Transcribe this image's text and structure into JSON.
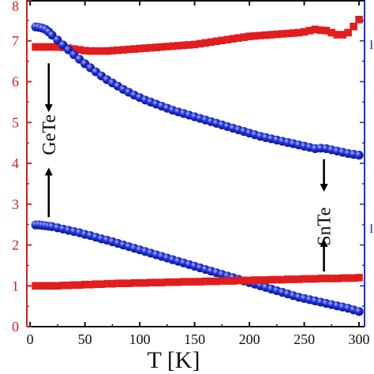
{
  "chart_data": {
    "type": "scatter",
    "xlabel": "T [K]",
    "xlim": [
      -3,
      305
    ],
    "ylim": [
      0,
      8
    ],
    "x_ticks": [
      "0",
      "50",
      "100",
      "150",
      "200",
      "250",
      "300"
    ],
    "left_ticks": [
      "0",
      "1",
      "2",
      "3",
      "4",
      "5",
      "6",
      "7",
      "8"
    ],
    "right_axis_tick_fragments": [
      "I",
      "I"
    ],
    "grid": false,
    "legend": "none",
    "colors": {
      "red_series": "#e11d1d",
      "blue_series": "#1f2fd6",
      "left_axis": "#d11f1f",
      "right_axis": "#1f2fd6",
      "arrows": "#000000"
    },
    "series": [
      {
        "marker": "square",
        "color": "red",
        "x": [
          5,
          9,
          13,
          17,
          21,
          25,
          30,
          35,
          40,
          45,
          50,
          55,
          60,
          65,
          70,
          75,
          80,
          85,
          90,
          95,
          100,
          105,
          110,
          115,
          120,
          125,
          130,
          135,
          140,
          145,
          150,
          155,
          160,
          165,
          170,
          175,
          180,
          185,
          190,
          195,
          200,
          205,
          210,
          215,
          220,
          225,
          230,
          235,
          240,
          245,
          250,
          255,
          260,
          265,
          270,
          275,
          280,
          285,
          290,
          295,
          300
        ],
        "y": [
          6.85,
          6.85,
          6.85,
          6.85,
          6.85,
          6.85,
          6.84,
          6.82,
          6.8,
          6.78,
          6.76,
          6.75,
          6.75,
          6.75,
          6.75,
          6.76,
          6.77,
          6.78,
          6.79,
          6.8,
          6.81,
          6.82,
          6.83,
          6.84,
          6.85,
          6.86,
          6.87,
          6.88,
          6.89,
          6.9,
          6.91,
          6.93,
          6.95,
          6.97,
          6.99,
          7.01,
          7.03,
          7.05,
          7.07,
          7.09,
          7.11,
          7.12,
          7.13,
          7.14,
          7.15,
          7.16,
          7.17,
          7.18,
          7.19,
          7.2,
          7.22,
          7.25,
          7.28,
          7.26,
          7.25,
          7.2,
          7.15,
          7.15,
          7.2,
          7.35,
          7.52
        ]
      },
      {
        "marker": "circle",
        "color": "blue",
        "x": [
          5,
          8,
          11,
          14,
          17,
          20,
          25,
          30,
          35,
          40,
          45,
          50,
          55,
          60,
          65,
          70,
          75,
          80,
          85,
          90,
          95,
          100,
          105,
          110,
          115,
          120,
          125,
          130,
          135,
          140,
          145,
          150,
          155,
          160,
          165,
          170,
          175,
          180,
          185,
          190,
          195,
          200,
          205,
          210,
          215,
          220,
          225,
          230,
          235,
          240,
          245,
          250,
          255,
          260,
          265,
          270,
          275,
          280,
          285,
          290,
          295,
          300
        ],
        "y": [
          7.34,
          7.33,
          7.31,
          7.28,
          7.22,
          7.14,
          7.02,
          6.9,
          6.78,
          6.66,
          6.55,
          6.44,
          6.34,
          6.24,
          6.14,
          6.05,
          5.97,
          5.89,
          5.81,
          5.74,
          5.67,
          5.61,
          5.55,
          5.5,
          5.45,
          5.4,
          5.35,
          5.3,
          5.26,
          5.22,
          5.18,
          5.14,
          5.1,
          5.06,
          5.02,
          4.98,
          4.94,
          4.9,
          4.86,
          4.82,
          4.78,
          4.74,
          4.7,
          4.66,
          4.63,
          4.6,
          4.57,
          4.54,
          4.51,
          4.48,
          4.45,
          4.42,
          4.39,
          4.36,
          4.37,
          4.36,
          4.33,
          4.3,
          4.27,
          4.24,
          4.22,
          4.2
        ]
      },
      {
        "marker": "circle",
        "color": "blue",
        "x": [
          5,
          8,
          11,
          14,
          17,
          20,
          25,
          30,
          35,
          40,
          45,
          50,
          55,
          60,
          65,
          70,
          75,
          80,
          85,
          90,
          95,
          100,
          105,
          110,
          115,
          120,
          125,
          130,
          135,
          140,
          145,
          150,
          155,
          160,
          165,
          170,
          175,
          180,
          185,
          190,
          195,
          200,
          205,
          210,
          215,
          220,
          225,
          230,
          235,
          240,
          245,
          250,
          255,
          260,
          265,
          270,
          275,
          280,
          285,
          290,
          295,
          300
        ],
        "y": [
          2.49,
          2.49,
          2.48,
          2.47,
          2.46,
          2.45,
          2.42,
          2.39,
          2.36,
          2.33,
          2.3,
          2.26,
          2.23,
          2.19,
          2.15,
          2.12,
          2.08,
          2.04,
          2.0,
          1.96,
          1.92,
          1.88,
          1.84,
          1.8,
          1.76,
          1.72,
          1.68,
          1.64,
          1.6,
          1.56,
          1.52,
          1.48,
          1.44,
          1.4,
          1.36,
          1.32,
          1.28,
          1.24,
          1.2,
          1.16,
          1.12,
          1.08,
          1.04,
          1.0,
          0.96,
          0.92,
          0.88,
          0.84,
          0.8,
          0.76,
          0.72,
          0.69,
          0.66,
          0.63,
          0.6,
          0.57,
          0.54,
          0.51,
          0.48,
          0.45,
          0.41,
          0.37
        ]
      },
      {
        "marker": "square",
        "color": "red",
        "x": [
          5,
          9,
          13,
          17,
          21,
          25,
          30,
          35,
          40,
          45,
          50,
          55,
          60,
          65,
          70,
          75,
          80,
          85,
          90,
          95,
          100,
          105,
          110,
          115,
          120,
          125,
          130,
          135,
          140,
          145,
          150,
          155,
          160,
          165,
          170,
          175,
          180,
          185,
          190,
          195,
          200,
          205,
          210,
          215,
          220,
          225,
          230,
          235,
          240,
          245,
          250,
          255,
          260,
          265,
          270,
          275,
          280,
          285,
          290,
          295,
          300
        ],
        "y": [
          1.0,
          1.0,
          1.0,
          1.0,
          1.0,
          1.0,
          1.01,
          1.01,
          1.02,
          1.02,
          1.03,
          1.03,
          1.04,
          1.04,
          1.05,
          1.05,
          1.06,
          1.06,
          1.06,
          1.07,
          1.07,
          1.07,
          1.08,
          1.08,
          1.08,
          1.09,
          1.09,
          1.09,
          1.1,
          1.1,
          1.1,
          1.1,
          1.11,
          1.11,
          1.11,
          1.12,
          1.12,
          1.12,
          1.13,
          1.13,
          1.13,
          1.14,
          1.14,
          1.14,
          1.15,
          1.15,
          1.15,
          1.16,
          1.16,
          1.16,
          1.17,
          1.17,
          1.17,
          1.18,
          1.18,
          1.18,
          1.18,
          1.19,
          1.19,
          1.19,
          1.2
        ]
      }
    ],
    "annotations": [
      {
        "text": "GeTe",
        "x": 17,
        "y": 4.7
      },
      {
        "text": "SnTe",
        "x": 268,
        "y": 2.45
      }
    ],
    "arrows": [
      {
        "x": 17,
        "y_from": 6.45,
        "y_to": 5.35
      },
      {
        "x": 17,
        "y_from": 2.68,
        "y_to": 3.8
      },
      {
        "x": 268,
        "y_from": 4.1,
        "y_to": 3.4
      },
      {
        "x": 268,
        "y_from": 1.35,
        "y_to": 2.05
      }
    ]
  }
}
